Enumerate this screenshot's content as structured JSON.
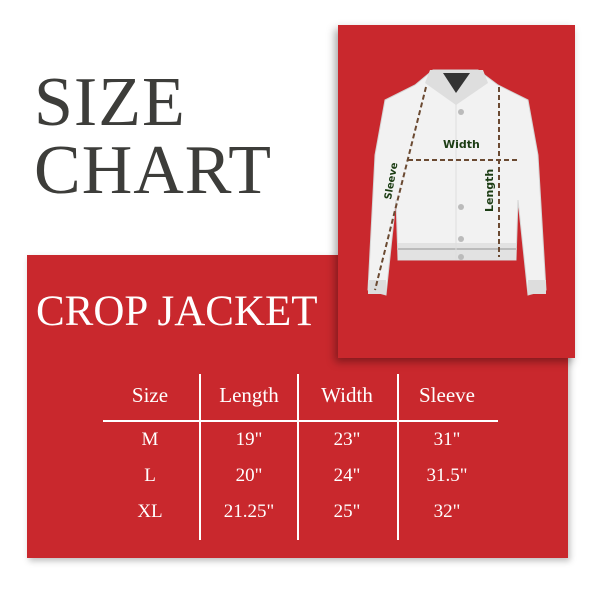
{
  "title": {
    "line1": "SIZE",
    "line2": "CHART"
  },
  "subtitle": "CROP JACKET",
  "diagram": {
    "labels": {
      "width": "Width",
      "length": "Length",
      "sleeve": "Sleeve"
    }
  },
  "table": {
    "headers": [
      "Size",
      "Length",
      "Width",
      "Sleeve"
    ],
    "rows": [
      [
        "M",
        "19\"",
        "23\"",
        "31\""
      ],
      [
        "L",
        "20\"",
        "24\"",
        "31.5\""
      ],
      [
        "XL",
        "21.25\"",
        "25\"",
        "32\""
      ]
    ]
  },
  "colors": {
    "accent": "#c9282d",
    "title": "#3d3d3a",
    "label": "#1c3d14"
  }
}
